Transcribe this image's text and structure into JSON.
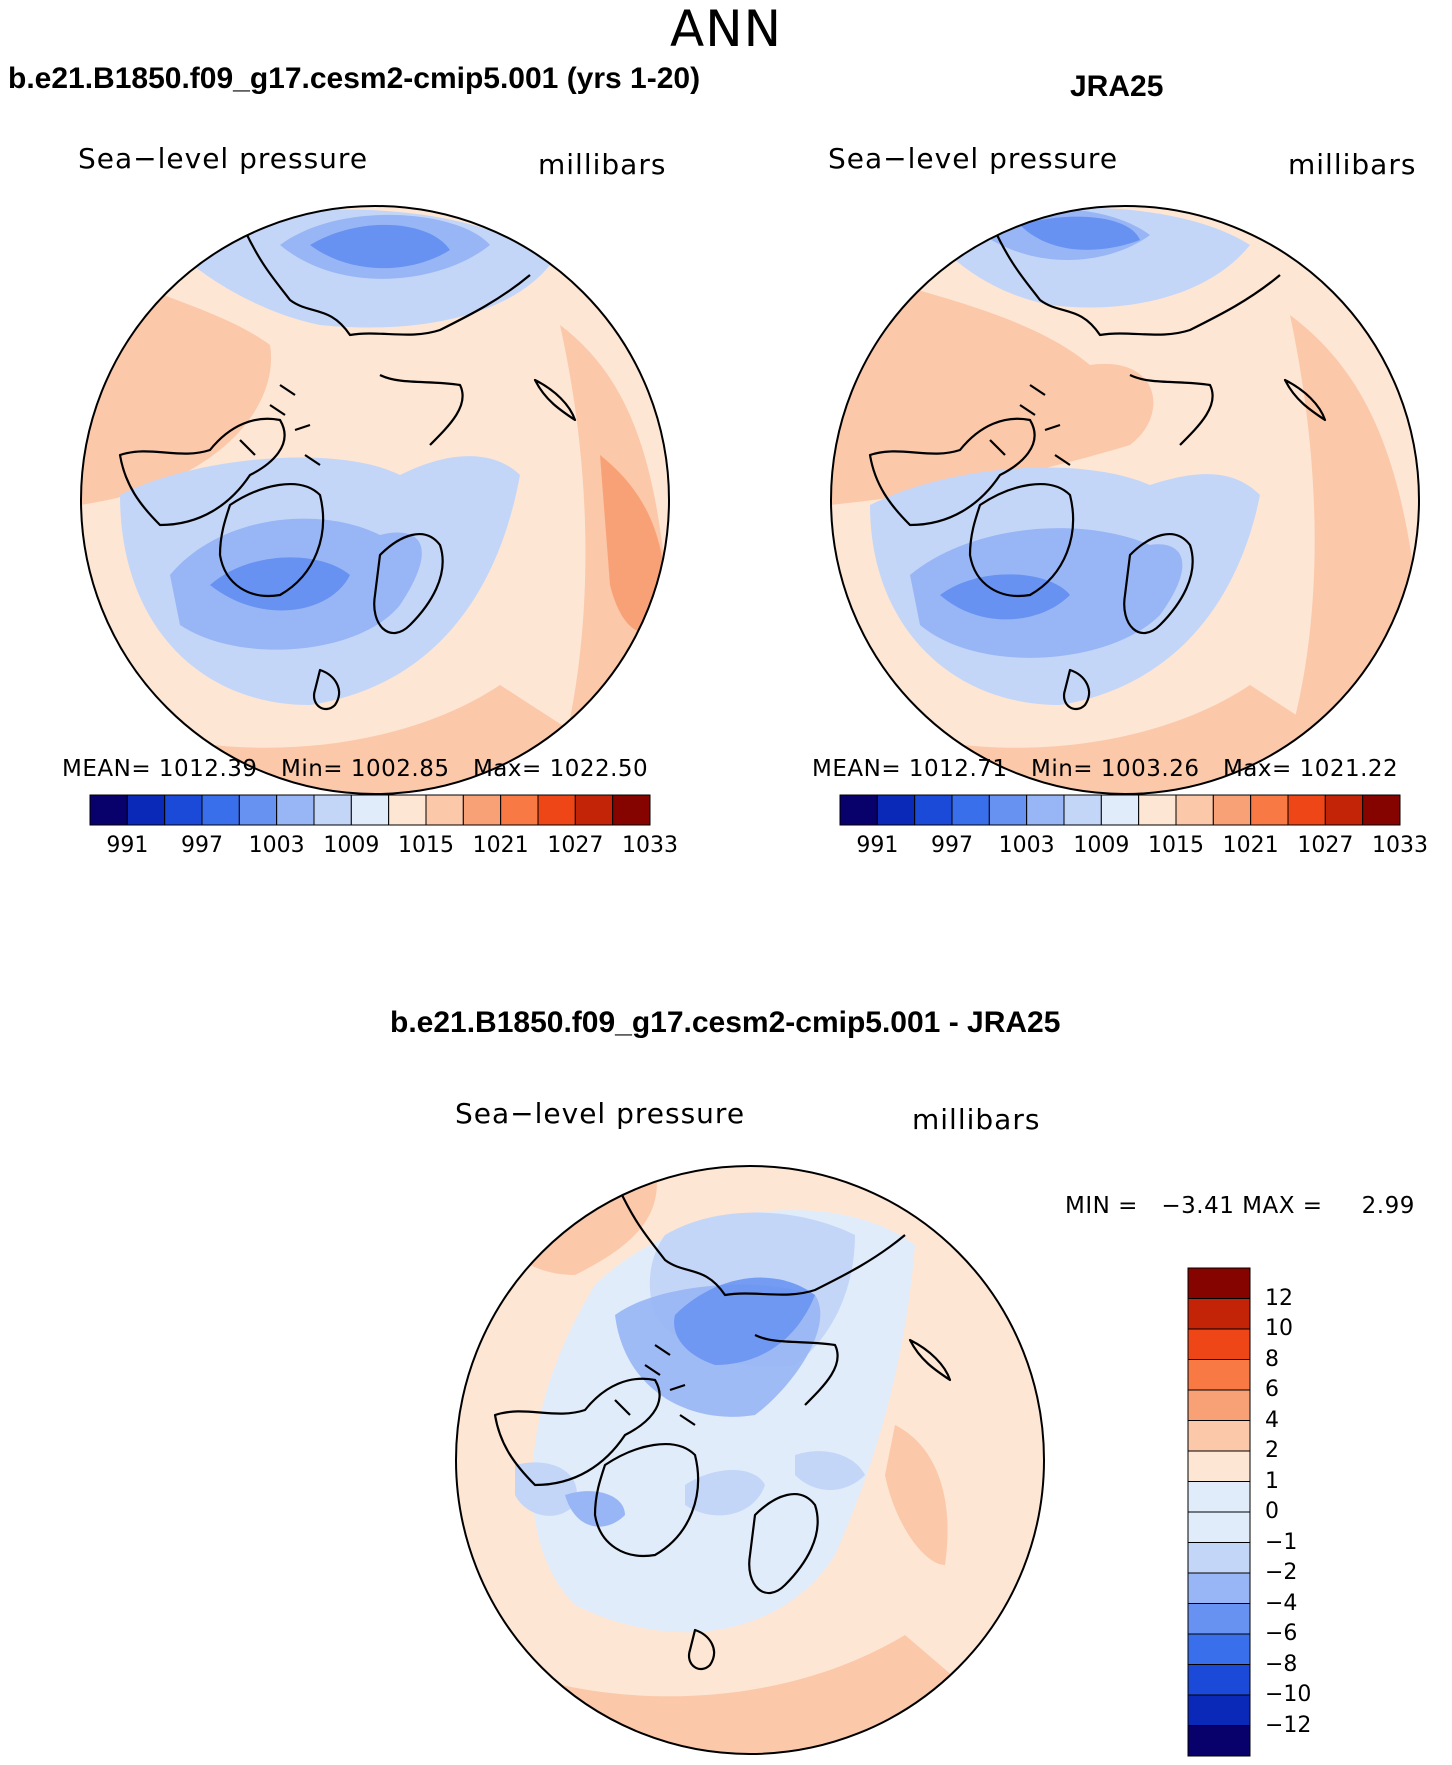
{
  "season": "ANN",
  "panels": [
    {
      "title": "b.e21.B1850.f09_g17.cesm2-cmip5.001 (yrs 1-20)",
      "variable_label": "Sea−level pressure",
      "units_label": "millibars",
      "stats": {
        "mean_label": "MEAN=",
        "mean": "1012.39",
        "min_label": "Min=",
        "min": "1002.85",
        "max_label": "Max=",
        "max": "1022.50"
      },
      "colorbar_ticks": [
        "991",
        "997",
        "1003",
        "1009",
        "1015",
        "1021",
        "1027",
        "1033"
      ]
    },
    {
      "title": "JRA25",
      "variable_label": "Sea−level pressure",
      "units_label": "millibars",
      "stats": {
        "mean_label": "MEAN=",
        "mean": "1012.71",
        "min_label": "Min=",
        "min": "1003.26",
        "max_label": "Max=",
        "max": "1021.22"
      },
      "colorbar_ticks": [
        "991",
        "997",
        "1003",
        "1009",
        "1015",
        "1021",
        "1027",
        "1033"
      ]
    }
  ],
  "difference": {
    "title": "b.e21.B1850.f09_g17.cesm2-cmip5.001 - JRA25",
    "variable_label": "Sea−level pressure",
    "units_label": "millibars",
    "min_label": "MIN =",
    "min": "−3.41",
    "max_label": "MAX =",
    "max": "2.99",
    "colorbar_ticks": [
      "12",
      "10",
      "8",
      "6",
      "4",
      "2",
      "1",
      "0",
      "−1",
      "−2",
      "−4",
      "−6",
      "−8",
      "−10",
      "−12"
    ]
  },
  "palette": [
    "#08016b",
    "#0a29b9",
    "#1b49d8",
    "#3a6fec",
    "#6792f2",
    "#98b6f5",
    "#c4d6f8",
    "#e1ecfb",
    "#fde6d4",
    "#fbc8aa",
    "#f9a176",
    "#f97945",
    "#ee4617",
    "#c32307",
    "#860400"
  ]
}
